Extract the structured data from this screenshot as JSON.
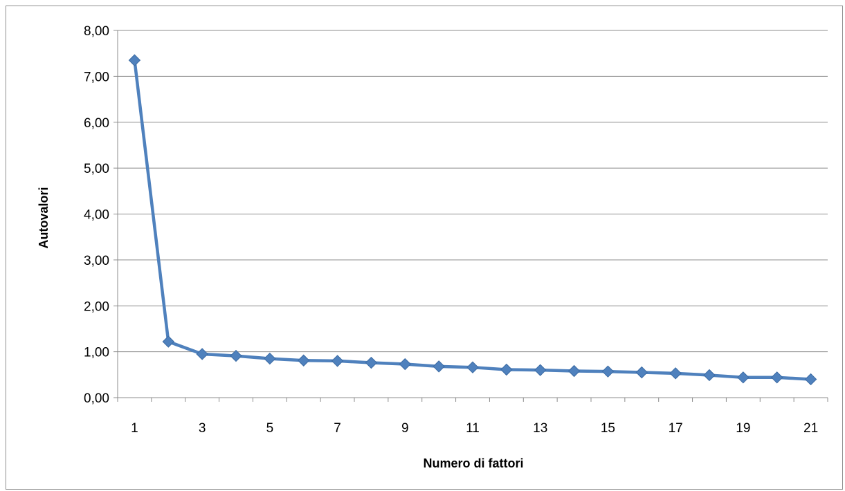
{
  "chart_data": {
    "type": "line",
    "title": "",
    "xlabel": "Numero di fattori",
    "ylabel": "Autovalori",
    "ylim": [
      0,
      8
    ],
    "xlim": [
      1,
      21
    ],
    "y_ticks": [
      "0,00",
      "1,00",
      "2,00",
      "3,00",
      "4,00",
      "5,00",
      "6,00",
      "7,00",
      "8,00"
    ],
    "x_tick_labels": [
      "1",
      "3",
      "5",
      "7",
      "9",
      "11",
      "13",
      "15",
      "17",
      "19",
      "21"
    ],
    "grid": true,
    "legend": "none",
    "marker": "diamond",
    "series": [
      {
        "color": "#4f81bd",
        "x": [
          1,
          2,
          3,
          4,
          5,
          6,
          7,
          8,
          9,
          10,
          11,
          12,
          13,
          14,
          15,
          16,
          17,
          18,
          19,
          20,
          21
        ],
        "values": [
          7.35,
          1.22,
          0.95,
          0.91,
          0.85,
          0.81,
          0.8,
          0.76,
          0.73,
          0.68,
          0.66,
          0.61,
          0.6,
          0.58,
          0.57,
          0.55,
          0.53,
          0.49,
          0.44,
          0.44,
          0.4
        ]
      }
    ]
  }
}
